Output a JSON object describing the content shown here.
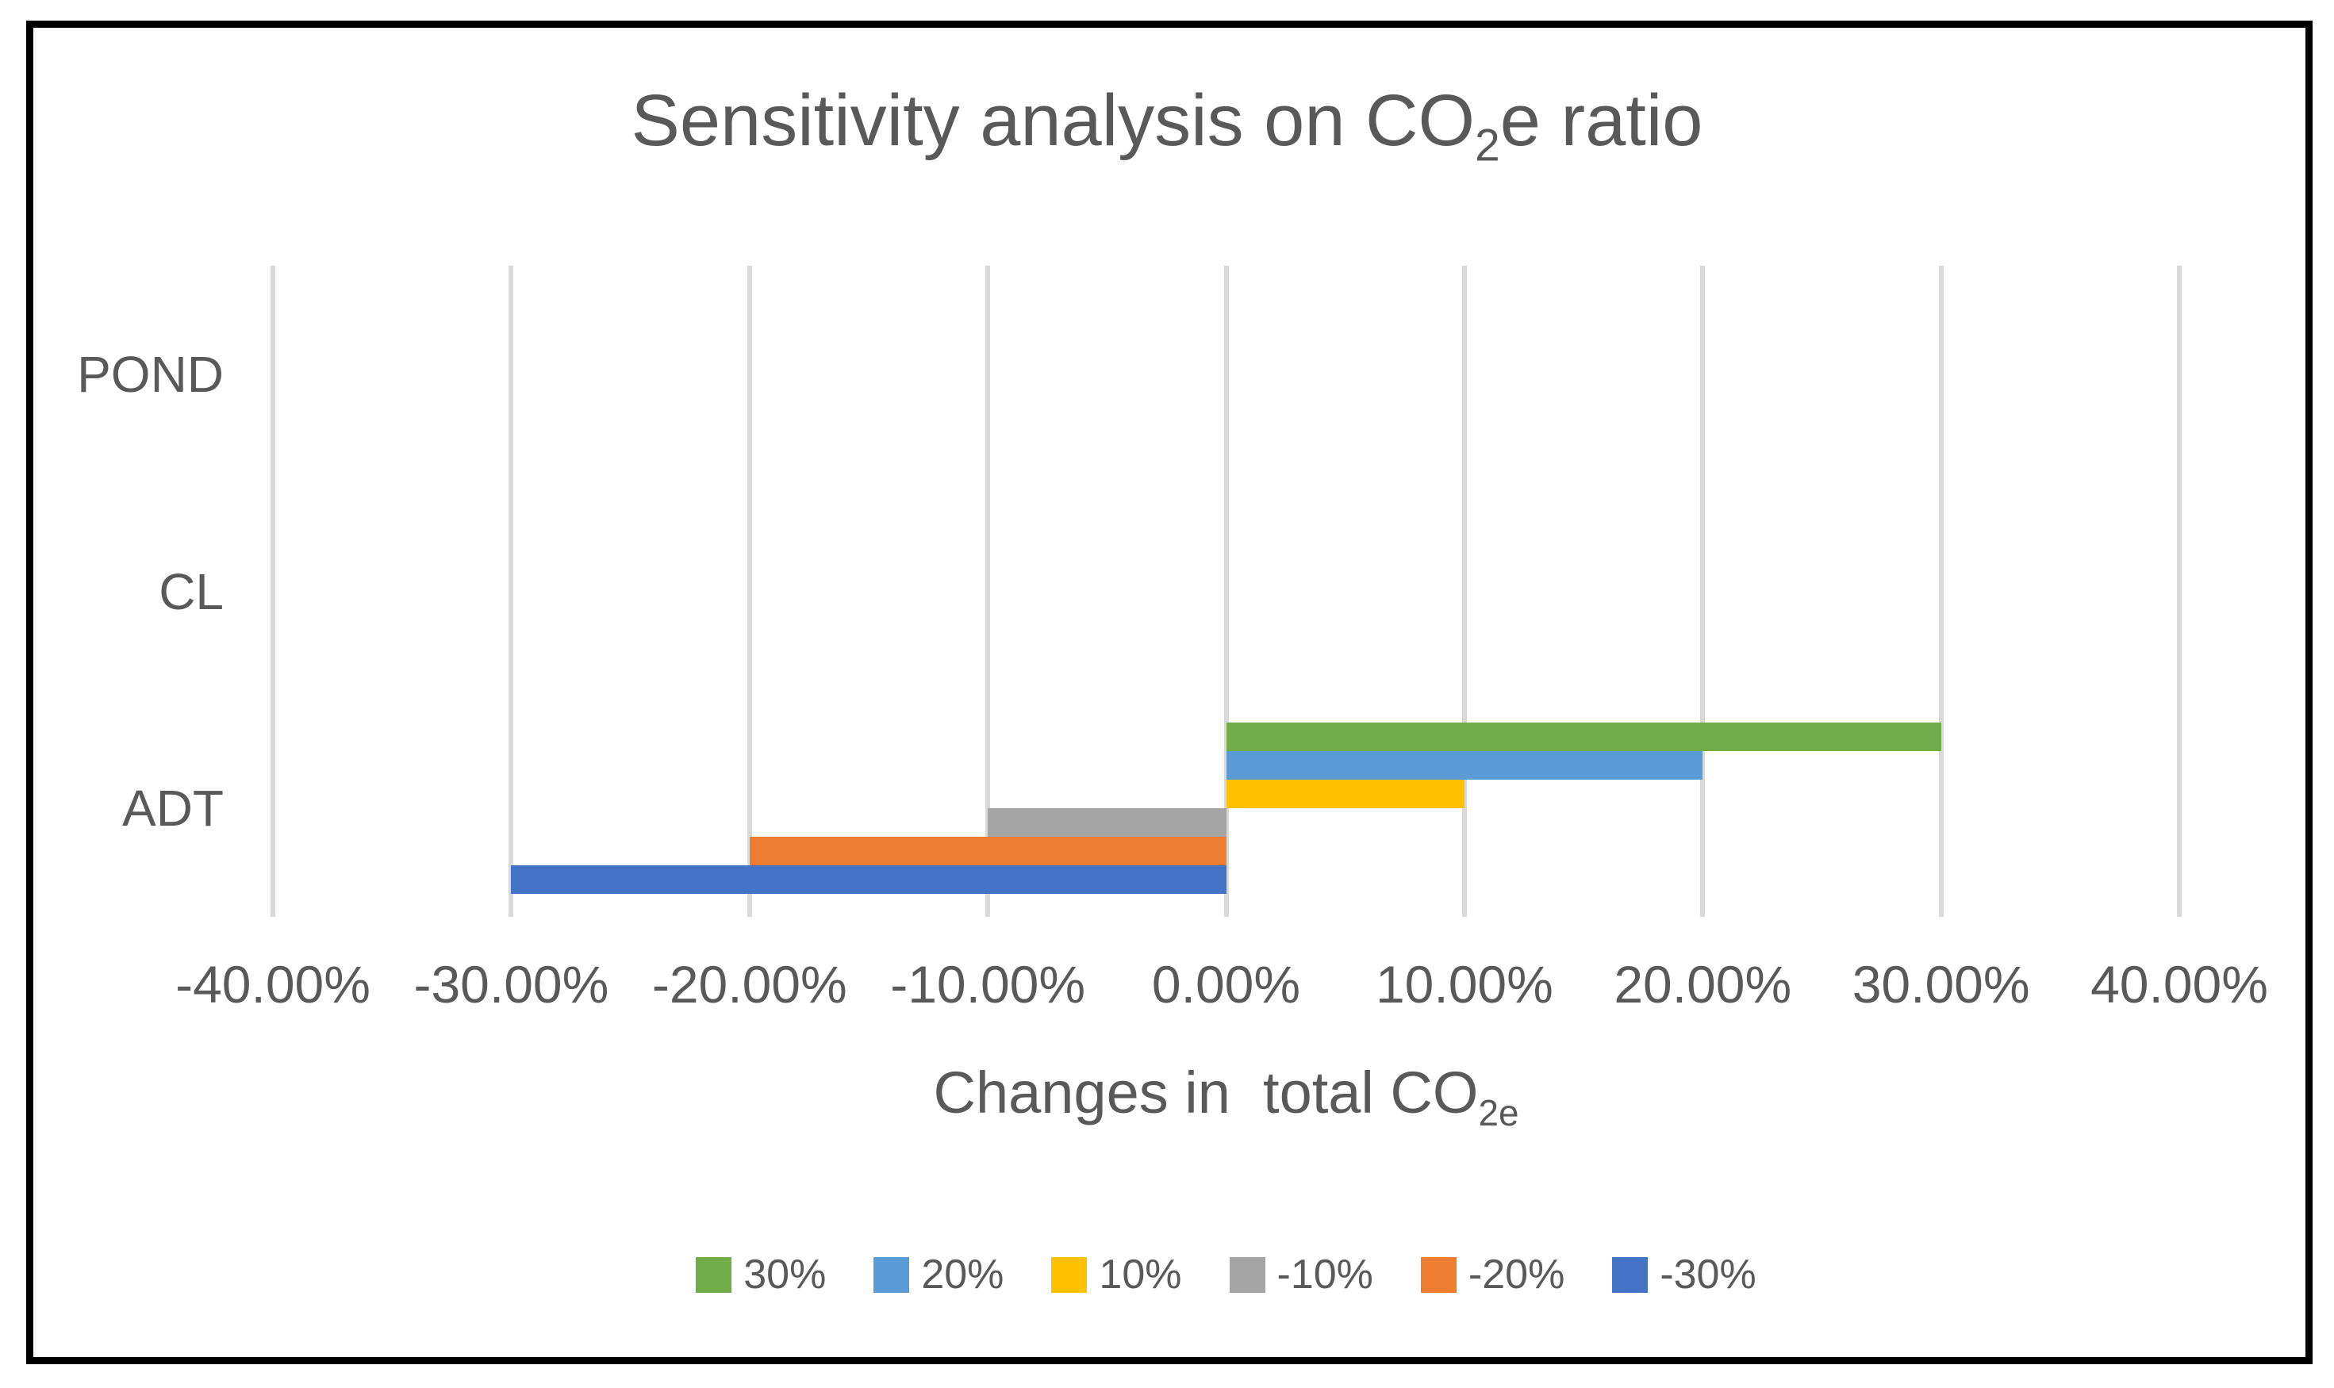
{
  "frame": {
    "border_color": "#000000"
  },
  "chart_data": {
    "type": "bar",
    "orientation": "horizontal",
    "title": "Sensitivity analysis on CO2e ratio",
    "title_parts": {
      "prefix": "Sensitivity analysis on CO",
      "sub": "2",
      "suffix": "e ratio"
    },
    "xlabel": "Changes in  total CO2e",
    "xlabel_parts": {
      "prefix": "Changes in  total CO",
      "sub": "2e"
    },
    "categories": [
      "POND",
      "CL",
      "ADT"
    ],
    "series": [
      {
        "name": "30%",
        "color": "#70AD47",
        "values": [
          0,
          0,
          30
        ]
      },
      {
        "name": "20%",
        "color": "#5B9BD5",
        "values": [
          0,
          0,
          20
        ]
      },
      {
        "name": "10%",
        "color": "#FFC000",
        "values": [
          0,
          0,
          10
        ]
      },
      {
        "name": "-10%",
        "color": "#A5A5A5",
        "values": [
          0,
          0,
          -10
        ]
      },
      {
        "name": "-20%",
        "color": "#ED7D31",
        "values": [
          0,
          0,
          -20
        ]
      },
      {
        "name": "-30%",
        "color": "#4472C4",
        "values": [
          0,
          0,
          -30
        ]
      }
    ],
    "xlim": [
      -40,
      40
    ],
    "x_tick_values": [
      -40,
      -30,
      -20,
      -10,
      0,
      10,
      20,
      30,
      40
    ],
    "x_ticks": [
      "-40.00%",
      "-30.00%",
      "-20.00%",
      "-10.00%",
      "0.00%",
      "10.00%",
      "20.00%",
      "30.00%",
      "40.00%"
    ],
    "grid": "vertical",
    "legend_position": "bottom",
    "colors": {
      "gridline": "#D9D9D9",
      "text": "#595959",
      "background": "#FFFFFF"
    }
  }
}
